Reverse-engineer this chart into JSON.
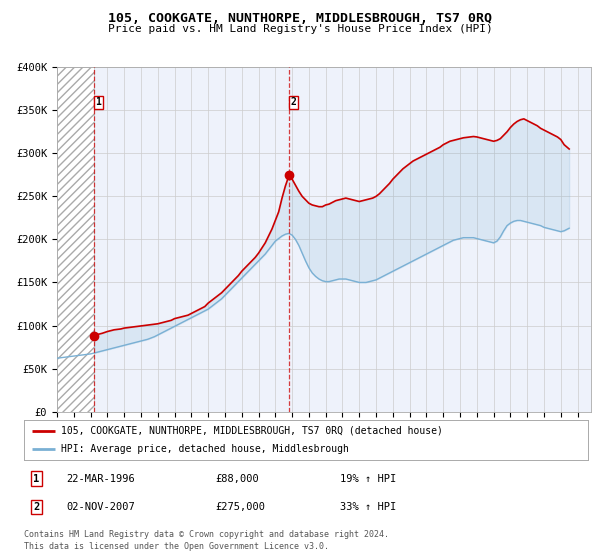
{
  "title": "105, COOKGATE, NUNTHORPE, MIDDLESBROUGH, TS7 0RQ",
  "subtitle": "Price paid vs. HM Land Registry's House Price Index (HPI)",
  "ylim": [
    0,
    400000
  ],
  "xlim_start": 1994.0,
  "xlim_end": 2025.8,
  "yticks": [
    0,
    50000,
    100000,
    150000,
    200000,
    250000,
    300000,
    350000,
    400000
  ],
  "ytick_labels": [
    "£0",
    "£50K",
    "£100K",
    "£150K",
    "£200K",
    "£250K",
    "£300K",
    "£350K",
    "£400K"
  ],
  "xtick_years": [
    1994,
    1995,
    1996,
    1997,
    1998,
    1999,
    2000,
    2001,
    2002,
    2003,
    2004,
    2005,
    2006,
    2007,
    2008,
    2009,
    2010,
    2011,
    2012,
    2013,
    2014,
    2015,
    2016,
    2017,
    2018,
    2019,
    2020,
    2021,
    2022,
    2023,
    2024,
    2025
  ],
  "red_line_color": "#cc0000",
  "blue_line_color": "#7ab0d4",
  "point1_year": 1996.22,
  "point1_price": 88000,
  "point2_year": 2007.83,
  "point2_price": 275000,
  "point1_date": "22-MAR-1996",
  "point1_hpi_str": "19% ↑ HPI",
  "point2_date": "02-NOV-2007",
  "point2_hpi_str": "33% ↑ HPI",
  "legend_line1": "105, COOKGATE, NUNTHORPE, MIDDLESBROUGH, TS7 0RQ (detached house)",
  "legend_line2": "HPI: Average price, detached house, Middlesbrough",
  "footer1": "Contains HM Land Registry data © Crown copyright and database right 2024.",
  "footer2": "This data is licensed under the Open Government Licence v3.0.",
  "hatch_end_year": 1996.22,
  "background_color": "#eef2fb",
  "red_series_x": [
    1996.22,
    1996.3,
    1996.5,
    1996.7,
    1997.0,
    1997.2,
    1997.4,
    1997.6,
    1997.8,
    1998.0,
    1998.2,
    1998.4,
    1998.6,
    1998.8,
    1999.0,
    1999.2,
    1999.4,
    1999.6,
    1999.8,
    2000.0,
    2000.2,
    2000.4,
    2000.6,
    2000.8,
    2001.0,
    2001.2,
    2001.4,
    2001.6,
    2001.8,
    2002.0,
    2002.2,
    2002.4,
    2002.6,
    2002.8,
    2003.0,
    2003.2,
    2003.4,
    2003.6,
    2003.8,
    2004.0,
    2004.2,
    2004.4,
    2004.6,
    2004.8,
    2005.0,
    2005.2,
    2005.4,
    2005.6,
    2005.8,
    2006.0,
    2006.2,
    2006.4,
    2006.6,
    2006.8,
    2007.0,
    2007.2,
    2007.4,
    2007.6,
    2007.83,
    2008.0,
    2008.2,
    2008.4,
    2008.6,
    2008.8,
    2009.0,
    2009.2,
    2009.4,
    2009.6,
    2009.8,
    2010.0,
    2010.2,
    2010.4,
    2010.6,
    2010.8,
    2011.0,
    2011.2,
    2011.4,
    2011.6,
    2011.8,
    2012.0,
    2012.2,
    2012.4,
    2012.6,
    2012.8,
    2013.0,
    2013.2,
    2013.4,
    2013.6,
    2013.8,
    2014.0,
    2014.2,
    2014.4,
    2014.6,
    2014.8,
    2015.0,
    2015.2,
    2015.4,
    2015.6,
    2015.8,
    2016.0,
    2016.2,
    2016.4,
    2016.6,
    2016.8,
    2017.0,
    2017.2,
    2017.4,
    2017.6,
    2017.8,
    2018.0,
    2018.2,
    2018.4,
    2018.6,
    2018.8,
    2019.0,
    2019.2,
    2019.4,
    2019.6,
    2019.8,
    2020.0,
    2020.2,
    2020.4,
    2020.6,
    2020.8,
    2021.0,
    2021.2,
    2021.4,
    2021.6,
    2021.8,
    2022.0,
    2022.2,
    2022.4,
    2022.6,
    2022.8,
    2023.0,
    2023.2,
    2023.4,
    2023.6,
    2023.8,
    2024.0,
    2024.2,
    2024.5
  ],
  "red_series_y": [
    88000,
    89000,
    90000,
    91000,
    93000,
    94000,
    95000,
    95500,
    96000,
    97000,
    97500,
    98000,
    98500,
    99000,
    99500,
    100000,
    100500,
    101000,
    101500,
    102000,
    103000,
    104000,
    105000,
    106000,
    108000,
    109000,
    110000,
    111000,
    112000,
    114000,
    116000,
    118000,
    120000,
    122000,
    126000,
    129000,
    132000,
    135000,
    138000,
    142000,
    146000,
    150000,
    154000,
    158000,
    163000,
    167000,
    171000,
    175000,
    179000,
    184000,
    190000,
    196000,
    204000,
    212000,
    222000,
    232000,
    248000,
    262000,
    275000,
    270000,
    263000,
    256000,
    250000,
    246000,
    242000,
    240000,
    239000,
    238000,
    238000,
    240000,
    241000,
    243000,
    245000,
    246000,
    247000,
    248000,
    247000,
    246000,
    245000,
    244000,
    245000,
    246000,
    247000,
    248000,
    250000,
    253000,
    257000,
    261000,
    265000,
    270000,
    274000,
    278000,
    282000,
    285000,
    288000,
    291000,
    293000,
    295000,
    297000,
    299000,
    301000,
    303000,
    305000,
    307000,
    310000,
    312000,
    314000,
    315000,
    316000,
    317000,
    318000,
    318500,
    319000,
    319500,
    319000,
    318000,
    317000,
    316000,
    315000,
    314000,
    315000,
    317000,
    321000,
    325000,
    330000,
    334000,
    337000,
    339000,
    340000,
    338000,
    336000,
    334000,
    332000,
    329000,
    327000,
    325000,
    323000,
    321000,
    319000,
    316000,
    310000,
    305000
  ],
  "blue_series_x": [
    1994.0,
    1994.2,
    1994.4,
    1994.6,
    1994.8,
    1995.0,
    1995.2,
    1995.4,
    1995.6,
    1995.8,
    1996.0,
    1996.2,
    1996.4,
    1996.6,
    1996.8,
    1997.0,
    1997.2,
    1997.4,
    1997.6,
    1997.8,
    1998.0,
    1998.2,
    1998.4,
    1998.6,
    1998.8,
    1999.0,
    1999.2,
    1999.4,
    1999.6,
    1999.8,
    2000.0,
    2000.2,
    2000.4,
    2000.6,
    2000.8,
    2001.0,
    2001.2,
    2001.4,
    2001.6,
    2001.8,
    2002.0,
    2002.2,
    2002.4,
    2002.6,
    2002.8,
    2003.0,
    2003.2,
    2003.4,
    2003.6,
    2003.8,
    2004.0,
    2004.2,
    2004.4,
    2004.6,
    2004.8,
    2005.0,
    2005.2,
    2005.4,
    2005.6,
    2005.8,
    2006.0,
    2006.2,
    2006.4,
    2006.6,
    2006.8,
    2007.0,
    2007.2,
    2007.4,
    2007.6,
    2007.8,
    2008.0,
    2008.2,
    2008.4,
    2008.6,
    2008.8,
    2009.0,
    2009.2,
    2009.4,
    2009.6,
    2009.8,
    2010.0,
    2010.2,
    2010.4,
    2010.6,
    2010.8,
    2011.0,
    2011.2,
    2011.4,
    2011.6,
    2011.8,
    2012.0,
    2012.2,
    2012.4,
    2012.6,
    2012.8,
    2013.0,
    2013.2,
    2013.4,
    2013.6,
    2013.8,
    2014.0,
    2014.2,
    2014.4,
    2014.6,
    2014.8,
    2015.0,
    2015.2,
    2015.4,
    2015.6,
    2015.8,
    2016.0,
    2016.2,
    2016.4,
    2016.6,
    2016.8,
    2017.0,
    2017.2,
    2017.4,
    2017.6,
    2017.8,
    2018.0,
    2018.2,
    2018.4,
    2018.6,
    2018.8,
    2019.0,
    2019.2,
    2019.4,
    2019.6,
    2019.8,
    2020.0,
    2020.2,
    2020.4,
    2020.6,
    2020.8,
    2021.0,
    2021.2,
    2021.4,
    2021.6,
    2021.8,
    2022.0,
    2022.2,
    2022.4,
    2022.6,
    2022.8,
    2023.0,
    2023.2,
    2023.4,
    2023.6,
    2023.8,
    2024.0,
    2024.2,
    2024.5
  ],
  "blue_series_y": [
    62000,
    62500,
    63000,
    63500,
    64000,
    64500,
    65000,
    65500,
    66000,
    66500,
    67000,
    68000,
    69000,
    70000,
    71000,
    72000,
    73000,
    74000,
    75000,
    76000,
    77000,
    78000,
    79000,
    80000,
    81000,
    82000,
    83000,
    84000,
    85500,
    87000,
    89000,
    91000,
    93000,
    95000,
    97000,
    99000,
    101000,
    103000,
    105000,
    107000,
    109000,
    111000,
    113000,
    115000,
    117000,
    119000,
    122000,
    125000,
    128000,
    131000,
    135000,
    139000,
    143000,
    147000,
    151000,
    155000,
    159000,
    163000,
    167000,
    171000,
    175000,
    179000,
    183000,
    188000,
    193000,
    198000,
    201000,
    204000,
    206000,
    207000,
    205000,
    200000,
    193000,
    184000,
    175000,
    167000,
    161000,
    157000,
    154000,
    152000,
    151000,
    151000,
    152000,
    153000,
    154000,
    154000,
    154000,
    153000,
    152000,
    151000,
    150000,
    150000,
    150000,
    151000,
    152000,
    153000,
    155000,
    157000,
    159000,
    161000,
    163000,
    165000,
    167000,
    169000,
    171000,
    173000,
    175000,
    177000,
    179000,
    181000,
    183000,
    185000,
    187000,
    189000,
    191000,
    193000,
    195000,
    197000,
    199000,
    200000,
    201000,
    202000,
    202000,
    202000,
    202000,
    201000,
    200000,
    199000,
    198000,
    197000,
    196000,
    198000,
    203000,
    210000,
    216000,
    219000,
    221000,
    222000,
    222000,
    221000,
    220000,
    219000,
    218000,
    217000,
    216000,
    214000,
    213000,
    212000,
    211000,
    210000,
    209000,
    210000,
    213000
  ]
}
